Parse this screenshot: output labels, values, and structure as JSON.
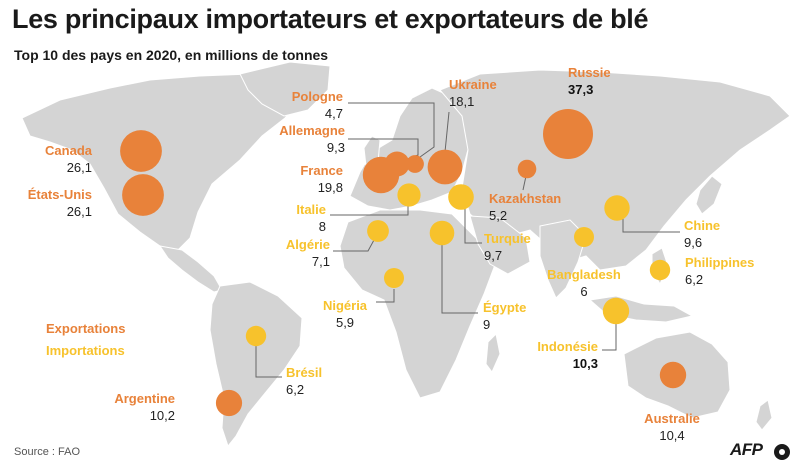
{
  "title": "Les principaux importateurs et exportateurs de blé",
  "subtitle": "Top 10 des pays en 2020, en millions de tonnes",
  "colors": {
    "export": "#e8823a",
    "import": "#f7c22c",
    "land": "#d4d4d4",
    "leader": "#666666"
  },
  "legend": {
    "export": "Exportations",
    "import": "Importations"
  },
  "countries": [
    {
      "name": "Russie",
      "value": "37,3",
      "kind": "export",
      "emph": true
    },
    {
      "name": "Canada",
      "value": "26,1",
      "kind": "export"
    },
    {
      "name": "États-Unis",
      "value": "26,1",
      "kind": "export"
    },
    {
      "name": "France",
      "value": "19,8",
      "kind": "export"
    },
    {
      "name": "Ukraine",
      "value": "18,1",
      "kind": "export"
    },
    {
      "name": "Australie",
      "value": "10,4",
      "kind": "export"
    },
    {
      "name": "Argentine",
      "value": "10,2",
      "kind": "export"
    },
    {
      "name": "Allemagne",
      "value": "9,3",
      "kind": "export"
    },
    {
      "name": "Kazakhstan",
      "value": "5,2",
      "kind": "export"
    },
    {
      "name": "Pologne",
      "value": "4,7",
      "kind": "export"
    },
    {
      "name": "Indonésie",
      "value": "10,3",
      "kind": "import",
      "emph": true
    },
    {
      "name": "Turquie",
      "value": "9,7",
      "kind": "import"
    },
    {
      "name": "Chine",
      "value": "9,6",
      "kind": "import"
    },
    {
      "name": "Égypte",
      "value": "9",
      "kind": "import"
    },
    {
      "name": "Italie",
      "value": "8",
      "kind": "import"
    },
    {
      "name": "Algérie",
      "value": "7,1",
      "kind": "import"
    },
    {
      "name": "Philippines",
      "value": "6,2",
      "kind": "import"
    },
    {
      "name": "Brésil",
      "value": "6,2",
      "kind": "import"
    },
    {
      "name": "Bangladesh",
      "value": "6",
      "kind": "import"
    },
    {
      "name": "Nigéria",
      "value": "5,9",
      "kind": "import"
    }
  ],
  "source": "Source : FAO",
  "credit": "AFP"
}
